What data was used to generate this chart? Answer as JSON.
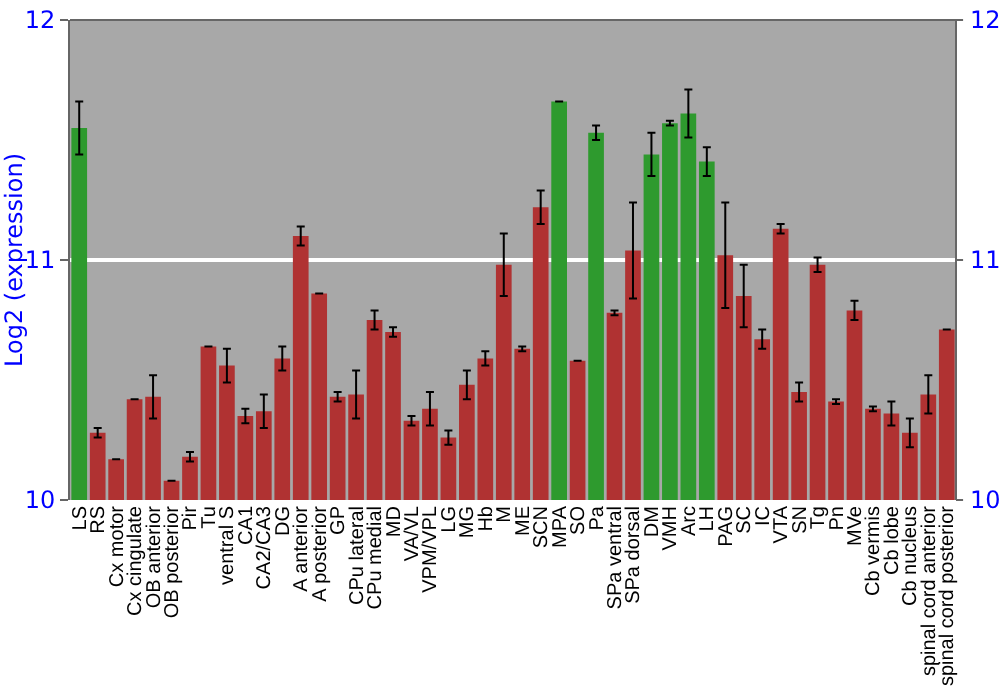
{
  "chart_data": {
    "type": "bar",
    "ylabel": "Log2 (expression)",
    "categories": [
      "LS",
      "RS",
      "Cx motor",
      "Cx cingulate",
      "OB anterior",
      "OB posterior",
      "Pir",
      "Tu",
      "ventral S",
      "CA1",
      "CA2/CA3",
      "DG",
      "A anterior",
      "A posterior",
      "GP",
      "CPu lateral",
      "CPu medial",
      "MD",
      "VA/VL",
      "VPM/VPL",
      "LG",
      "MG",
      "Hb",
      "M",
      "ME",
      "SCN",
      "MPA",
      "SO",
      "Pa",
      "SPa ventral",
      "SPa dorsal",
      "DM",
      "VMH",
      "Arc",
      "LH",
      "PAG",
      "SC",
      "IC",
      "VTA",
      "SN",
      "Tg",
      "Pn",
      "MVe",
      "Cb vermis",
      "Cb lobe",
      "Cb nucleus",
      "spinal cord anterior",
      "spinal cord posterior"
    ],
    "values": [
      11.55,
      10.28,
      10.17,
      10.42,
      10.43,
      10.08,
      10.18,
      10.64,
      10.56,
      10.35,
      10.37,
      10.59,
      11.1,
      10.86,
      10.43,
      10.44,
      10.75,
      10.7,
      10.33,
      10.38,
      10.26,
      10.48,
      10.59,
      10.98,
      10.63,
      11.22,
      11.66,
      10.58,
      11.53,
      10.78,
      11.04,
      11.44,
      11.57,
      11.61,
      11.41,
      11.02,
      10.85,
      10.67,
      11.13,
      10.45,
      10.98,
      10.41,
      10.79,
      10.38,
      10.36,
      10.28,
      10.44,
      10.71
    ],
    "errors": [
      0.11,
      0.02,
      null,
      null,
      0.09,
      null,
      0.02,
      null,
      0.07,
      0.03,
      0.07,
      0.05,
      0.04,
      null,
      0.02,
      0.1,
      0.04,
      0.02,
      0.02,
      0.07,
      0.03,
      0.06,
      0.03,
      0.13,
      0.01,
      0.07,
      null,
      null,
      0.03,
      0.01,
      0.2,
      0.09,
      0.01,
      0.1,
      0.06,
      0.22,
      0.13,
      0.04,
      0.02,
      0.04,
      0.03,
      0.01,
      0.04,
      0.01,
      0.05,
      0.06,
      0.08,
      null
    ],
    "colors": [
      "#2e9a2e",
      "#b03232",
      "#b03232",
      "#b03232",
      "#b03232",
      "#b03232",
      "#b03232",
      "#b03232",
      "#b03232",
      "#b03232",
      "#b03232",
      "#b03232",
      "#b03232",
      "#b03232",
      "#b03232",
      "#b03232",
      "#b03232",
      "#b03232",
      "#b03232",
      "#b03232",
      "#b03232",
      "#b03232",
      "#b03232",
      "#b03232",
      "#b03232",
      "#b03232",
      "#2e9a2e",
      "#b03232",
      "#2e9a2e",
      "#b03232",
      "#b03232",
      "#2e9a2e",
      "#2e9a2e",
      "#2e9a2e",
      "#2e9a2e",
      "#b03232",
      "#b03232",
      "#b03232",
      "#b03232",
      "#b03232",
      "#b03232",
      "#b03232",
      "#b03232",
      "#b03232",
      "#b03232",
      "#b03232",
      "#b03232",
      "#b03232"
    ],
    "ylim": [
      10,
      12
    ],
    "yticks": [
      10,
      11,
      12
    ],
    "y2lim": [
      10,
      12
    ],
    "y2ticks": [
      10,
      11,
      12
    ],
    "grid": "y"
  }
}
